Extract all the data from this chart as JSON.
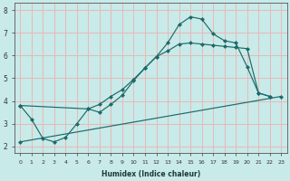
{
  "xlabel": "Humidex (Indice chaleur)",
  "bg_color": "#c8eae8",
  "grid_color": "#e8b8b8",
  "line_color": "#1a6b6b",
  "xlim": [
    -0.5,
    23.5
  ],
  "ylim": [
    1.7,
    8.3
  ],
  "xticks": [
    0,
    1,
    2,
    3,
    4,
    5,
    6,
    7,
    8,
    9,
    10,
    11,
    12,
    13,
    14,
    15,
    16,
    17,
    18,
    19,
    20,
    21,
    22,
    23
  ],
  "yticks": [
    2,
    3,
    4,
    5,
    6,
    7,
    8
  ],
  "line1_x": [
    0,
    1,
    2,
    3,
    4,
    5,
    6,
    7,
    8,
    9,
    10,
    11,
    12,
    13,
    14,
    15,
    16,
    17,
    18,
    19,
    20,
    21,
    22
  ],
  "line1_y": [
    3.8,
    3.2,
    2.35,
    2.2,
    2.4,
    3.0,
    3.65,
    3.5,
    3.85,
    4.25,
    4.9,
    5.45,
    5.95,
    6.55,
    7.35,
    7.7,
    7.6,
    6.95,
    6.65,
    6.55,
    5.5,
    4.35,
    4.2
  ],
  "line2_x": [
    0,
    6,
    7,
    8,
    9,
    10,
    11,
    12,
    13,
    14,
    15,
    16,
    17,
    18,
    19,
    20,
    21,
    22
  ],
  "line2_y": [
    3.8,
    3.65,
    3.85,
    4.2,
    4.5,
    4.95,
    5.45,
    5.95,
    6.2,
    6.5,
    6.55,
    6.5,
    6.45,
    6.4,
    6.35,
    6.3,
    4.35,
    4.2
  ],
  "line3_x": [
    0,
    23
  ],
  "line3_y": [
    2.2,
    4.2
  ]
}
